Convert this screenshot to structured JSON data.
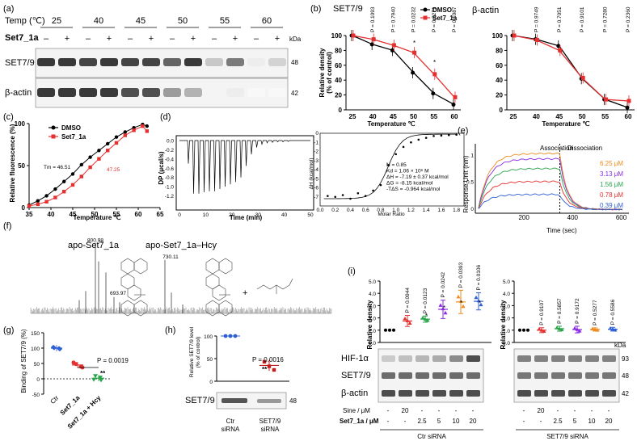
{
  "panels": {
    "a": {
      "letter": "(a)",
      "temp_header": "Temp (℃)",
      "temps": [
        "25",
        "40",
        "45",
        "50",
        "55",
        "60"
      ],
      "compound_label": "Set7_1a",
      "signs": [
        "–",
        "+",
        "–",
        "+",
        "–",
        "+",
        "–",
        "+",
        "–",
        "+",
        "–",
        "+"
      ],
      "blots": [
        "SET7/9",
        "β-actin"
      ],
      "kda_label": "kDa",
      "kda": [
        "48",
        "42"
      ]
    },
    "b": {
      "letter": "(b)",
      "left_title": "SET7/9",
      "right_title": "β-actin",
      "ylabel": "Relative density\n(% of control)",
      "xlabel": "Temperature ℃",
      "legend": [
        "DMSO",
        "Set7_1a"
      ],
      "left_p": [
        "P = 0.1093",
        "P = 0.7940",
        "P = 0.0232",
        "P = 0.0271",
        "P = 0.1087"
      ],
      "right_p": [
        "P = 0.9749",
        "P = 0.7051",
        "P = 0.9101",
        "P = 0.7280",
        "P = 0.2360"
      ]
    },
    "c": {
      "letter": "(c)",
      "ylabel": "Relative fluorescence (%)",
      "xlabel": "Temperature ℃",
      "legend": [
        "DMSO",
        "Set7_1a"
      ],
      "tm_dmso": "Tm = 46.51",
      "tm_set7": "47.25"
    },
    "d": {
      "letter": "(d)",
      "ylabel": "DP (μcal/s)",
      "xlabel": "Time (min)",
      "fit_ylabel": "ΔH (kcal/mol)",
      "fit_xlabel": "Molar Ratio",
      "fit_params": [
        "N = 0.85",
        "Kd = 1.06 × 10⁶ M",
        "ΔH = -7.19 ± 0.37 kcal/mol",
        "ΔG = -8.15 kcal/mol",
        "-TΔS = -0.964 kcal/mol"
      ]
    },
    "e": {
      "letter": "(e)",
      "ylabel": "Response Unit (nm)",
      "xlabel": "Time (sec)",
      "phases": [
        "Association",
        "Dissociation"
      ],
      "concentrations": [
        "6.25 μM",
        "3.13 μM",
        "1.56 μM",
        "0.78 μM",
        "0.39 μM"
      ]
    },
    "f": {
      "letter": "(f)",
      "labels": [
        "apo-Set7_1a",
        "apo-Set7_1a–Hcy"
      ],
      "peaks": [
        "800.98",
        "693.97",
        "730.11"
      ]
    },
    "g": {
      "letter": "(g)",
      "ylabel": "Binding of SET7/9 (%)",
      "groups": [
        "Ctr",
        "Set7_1a",
        "Set7_1a + Hcy"
      ],
      "p": "P = 0.0019",
      "sig": "**"
    },
    "h": {
      "letter": "(h)",
      "ylabel": "Relative SET7/9 level\n(% of control)",
      "p": "P = 0.0016",
      "sig": "**",
      "blot": "SET7/9",
      "kda": "48",
      "groups": [
        "Ctr\nsiRNA",
        "SET7/9\nsiRNA"
      ]
    },
    "i": {
      "letter": "(i)",
      "ylabel": "Relative density",
      "left_p": [
        "P = 0.0944",
        "P = 0.0123",
        "P = 0.0242",
        "P = 0.0393",
        "P = 0.0106"
      ],
      "right_p": [
        "P = 0.9107",
        "P = 0.5857",
        "P = 0.9172",
        "P = 0.5277",
        "P = 0.5586"
      ],
      "blots": [
        "HIF-1α",
        "SET7/9",
        "β-actin"
      ],
      "kda_label": "kDa",
      "kda": [
        "93",
        "48",
        "42"
      ],
      "sine_label": "Sine / μM",
      "set7_label": "Set7_1a / μM",
      "sine_vals": [
        "-",
        "20",
        "-",
        "-",
        "-",
        "-"
      ],
      "set7_vals": [
        "-",
        "-",
        "2.5",
        "5",
        "10",
        "20"
      ],
      "groups": [
        "Ctr siRNA",
        "SET7/9 siRNA"
      ]
    }
  },
  "chart_data": [
    {
      "type": "line",
      "title": "SET7/9",
      "xlabel": "Temperature ℃",
      "ylabel": "Relative density (% of control)",
      "x": [
        25,
        40,
        45,
        50,
        55,
        60
      ],
      "ylim": [
        0,
        100
      ],
      "series": [
        {
          "name": "DMSO",
          "values": [
            100,
            88,
            80,
            50,
            22,
            7
          ]
        },
        {
          "name": "Set7_1a",
          "values": [
            100,
            95,
            87,
            77,
            48,
            17
          ]
        }
      ]
    },
    {
      "type": "line",
      "title": "β-actin",
      "xlabel": "Temperature ℃",
      "ylabel": "Relative density (% of control)",
      "x": [
        25,
        40,
        45,
        50,
        55,
        60
      ],
      "ylim": [
        0,
        100
      ],
      "series": [
        {
          "name": "DMSO",
          "values": [
            100,
            95,
            86,
            42,
            14,
            3
          ]
        },
        {
          "name": "Set7_1a",
          "values": [
            100,
            94,
            80,
            43,
            14,
            12
          ]
        }
      ]
    },
    {
      "type": "scatter",
      "xlabel": "Temperature ℃",
      "ylabel": "Relative fluorescence (%)",
      "xlim": [
        35,
        65
      ],
      "ylim": [
        0,
        100
      ],
      "series": [
        {
          "name": "DMSO",
          "values": [
            [
              35,
              3
            ],
            [
              37,
              8
            ],
            [
              39,
              14
            ],
            [
              41,
              22
            ],
            [
              43,
              31
            ],
            [
              45,
              40
            ],
            [
              47,
              51
            ],
            [
              49,
              60
            ],
            [
              51,
              68
            ],
            [
              53,
              76
            ],
            [
              55,
              84
            ],
            [
              57,
              90
            ],
            [
              59,
              95
            ],
            [
              61,
              99
            ],
            [
              62,
              97
            ]
          ]
        },
        {
          "name": "Set7_1a",
          "values": [
            [
              35,
              2
            ],
            [
              37,
              4
            ],
            [
              39,
              7
            ],
            [
              41,
              12
            ],
            [
              43,
              19
            ],
            [
              45,
              27
            ],
            [
              47,
              37
            ],
            [
              49,
              48
            ],
            [
              51,
              58
            ],
            [
              53,
              68
            ],
            [
              55,
              77
            ],
            [
              57,
              86
            ],
            [
              59,
              92
            ],
            [
              61,
              97
            ],
            [
              62,
              91
            ]
          ]
        }
      ]
    },
    {
      "type": "scatter",
      "xlabel": "Groups",
      "ylabel": "Binding of SET7/9 (%)",
      "categories": [
        "Ctr",
        "Set7_1a",
        "Set7_1a + Hcy"
      ],
      "ylim": [
        -50,
        150
      ],
      "series": [
        {
          "values": [
            100,
            45,
            2
          ]
        }
      ]
    },
    {
      "type": "scatter",
      "ylabel": "Relative SET7/9 level (% of control)",
      "categories": [
        "Ctr siRNA",
        "SET7/9 siRNA"
      ],
      "ylim": [
        0,
        100
      ],
      "series": [
        {
          "values": [
            100,
            35
          ]
        }
      ]
    },
    {
      "type": "scatter",
      "ylabel": "Relative density",
      "categories": [
        "1",
        "2",
        "3",
        "4",
        "5",
        "6"
      ],
      "ylim": [
        0,
        5
      ],
      "series": [
        {
          "name": "Ctr siRNA",
          "values": [
            1,
            1.75,
            1.9,
            2.7,
            3.3,
            3.35
          ]
        },
        {
          "name": "SET7/9 siRNA",
          "values": [
            1,
            1.0,
            1.12,
            1.05,
            1.06,
            1.08
          ]
        }
      ]
    }
  ]
}
